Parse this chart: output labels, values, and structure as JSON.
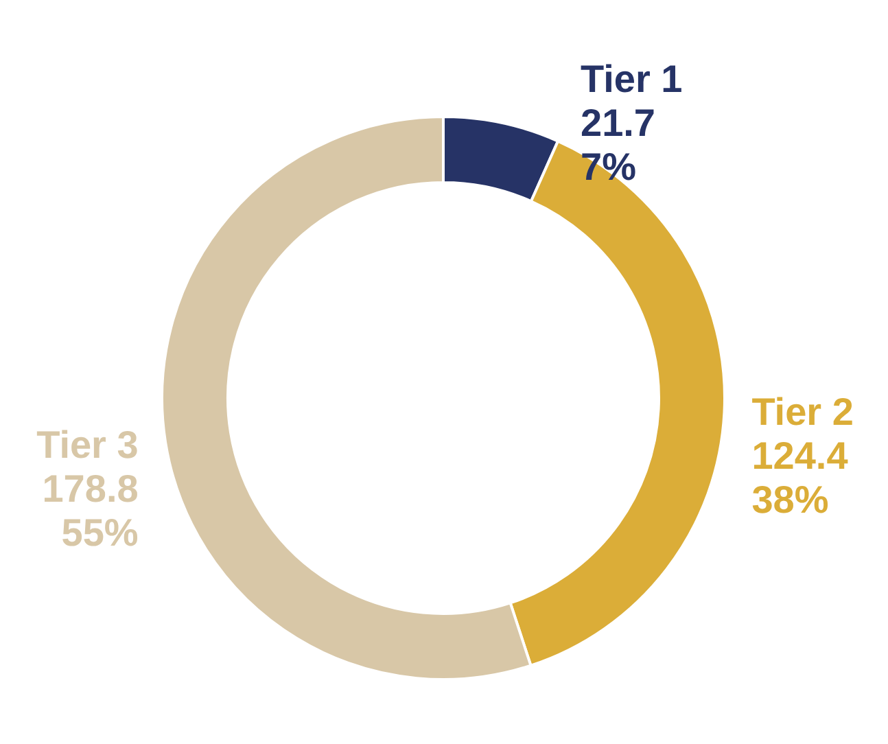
{
  "chart_data": {
    "type": "donut",
    "categories": [
      "Tier 1",
      "Tier 2",
      "Tier 3"
    ],
    "values": [
      21.7,
      124.4,
      178.8
    ],
    "colors": [
      "#263366",
      "#dbad38",
      "#d8c7a7"
    ],
    "data_labels": true,
    "legend": false,
    "annotations": [
      "7%",
      "38%",
      "55%"
    ]
  }
}
